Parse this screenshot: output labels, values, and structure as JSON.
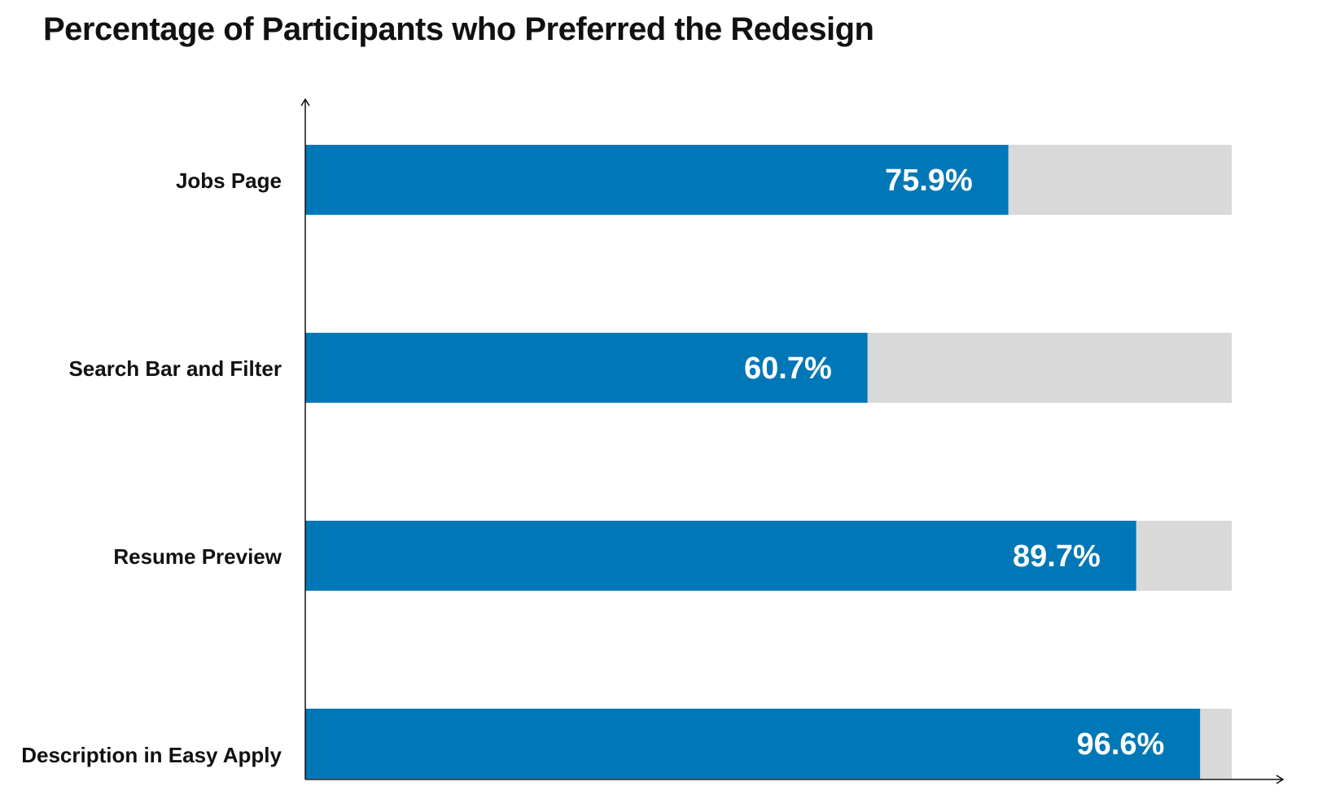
{
  "chart_data": {
    "type": "bar",
    "orientation": "horizontal",
    "stacked": true,
    "title": "Percentage of Participants who Preferred the Redesign",
    "categories": [
      "Jobs Page",
      "Search Bar and Filter",
      "Resume Preview",
      "Description in Easy Apply"
    ],
    "series": [
      {
        "values": [
          75.9,
          60.7,
          89.7,
          96.6
        ],
        "labels": [
          "75.9%",
          "60.7%",
          "89.7%",
          "96.6%"
        ],
        "color": "#0077B6"
      },
      {
        "values": [
          24.1,
          39.3,
          10.3,
          3.4
        ],
        "color": "#D9D9D9"
      }
    ],
    "xlim": [
      0,
      100
    ],
    "grid": false,
    "legend": "none"
  }
}
